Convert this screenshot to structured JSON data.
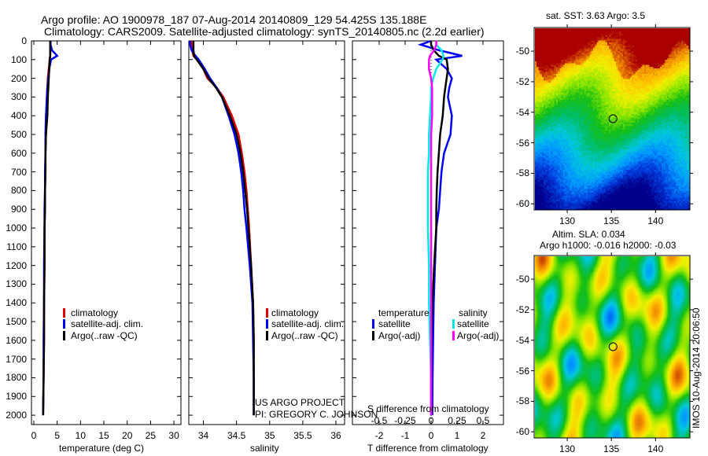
{
  "header": {
    "title_line1": "Argo profile: AO 1900978_187 07-Aug-2014 20140809_129 54.425S 135.188E",
    "title_line2": "Climatology: CARS2009. Satellite-adjusted climatology: synTS_20140805.nc (2.2d earlier)"
  },
  "colors": {
    "climatology": "#e00000",
    "satellite": "#0000ff",
    "argo": "#000000",
    "sal_satellite": "#00e8e8",
    "sal_argo": "#ff00ff"
  },
  "legend_profiles": {
    "climatology": "climatology",
    "satellite": "satellite-adj. clim.",
    "argo": "Argo(..raw -QC)"
  },
  "legend_diff": {
    "temperature": "temperature",
    "salinity": "salinity",
    "t_satellite": "satellite",
    "t_argo": "Argo(-adj)",
    "s_satellite": "satellite",
    "s_argo": "Argo(-adj)"
  },
  "credits": {
    "line1": "US ARGO PROJECT",
    "line2": "PI: GREGORY C. JOHNSON"
  },
  "timestamp": "IMOS 10-Aug-2014 20:06:50",
  "chart_data": [
    {
      "type": "line",
      "name": "temperature-profile",
      "xlabel": "temperature (deg C)",
      "ylabel": "",
      "xlim": [
        -0.5,
        31.5
      ],
      "ylim": [
        2050,
        0
      ],
      "xticks": [
        0,
        5,
        10,
        15,
        20,
        25,
        30
      ],
      "yticks": [
        0,
        100,
        200,
        300,
        400,
        500,
        600,
        700,
        800,
        900,
        1000,
        1100,
        1200,
        1300,
        1400,
        1500,
        1600,
        1700,
        1800,
        1900,
        2000
      ],
      "depth": [
        0,
        20,
        50,
        80,
        100,
        150,
        200,
        250,
        300,
        400,
        500,
        600,
        700,
        800,
        900,
        1000,
        1200,
        1400,
        1600,
        1800,
        2000
      ],
      "series": [
        {
          "name": "climatology",
          "color": "#e00000",
          "values": [
            3.6,
            3.6,
            3.6,
            3.5,
            3.4,
            3.2,
            3.0,
            2.9,
            2.8,
            2.7,
            2.6,
            2.5,
            2.5,
            2.4,
            2.4,
            2.3,
            2.3,
            2.2,
            2.2,
            2.1,
            2.0
          ]
        },
        {
          "name": "satellite-adj. clim.",
          "color": "#0000ff",
          "values": [
            3.6,
            3.6,
            3.9,
            5.0,
            3.7,
            3.3,
            3.1,
            2.9,
            2.8,
            2.6,
            2.5,
            2.5,
            2.4,
            2.4,
            2.3,
            2.3,
            2.2,
            2.2,
            2.1,
            2.1,
            2.0
          ]
        },
        {
          "name": "Argo(..raw -QC)",
          "color": "#000000",
          "values": [
            3.5,
            3.5,
            3.5,
            3.5,
            3.4,
            3.3,
            3.2,
            3.1,
            3.0,
            2.9,
            2.6,
            2.5,
            2.5,
            2.4,
            2.4,
            2.3,
            2.3,
            2.2,
            2.2,
            2.1,
            2.0
          ]
        }
      ]
    },
    {
      "type": "line",
      "name": "salinity-profile",
      "xlabel": "salinity",
      "ylabel": "",
      "xlim": [
        33.78,
        36.13
      ],
      "ylim": [
        2050,
        0
      ],
      "xticks": [
        34,
        34.5,
        35,
        35.5,
        36
      ],
      "depth": [
        0,
        20,
        50,
        80,
        100,
        150,
        200,
        250,
        300,
        400,
        500,
        600,
        700,
        800,
        900,
        1000,
        1200,
        1400,
        1600,
        1800,
        2000
      ],
      "series": [
        {
          "name": "climatology",
          "color": "#e00000",
          "values": [
            33.82,
            33.82,
            33.83,
            33.85,
            33.9,
            34.0,
            34.06,
            34.2,
            34.3,
            34.43,
            34.53,
            34.58,
            34.62,
            34.65,
            34.67,
            34.69,
            34.72,
            34.75,
            34.76,
            34.76,
            34.76
          ]
        },
        {
          "name": "satellite-adj. clim.",
          "color": "#0000ff",
          "values": [
            33.8,
            33.8,
            33.82,
            33.88,
            33.93,
            34.02,
            34.1,
            34.2,
            34.28,
            34.38,
            34.47,
            34.53,
            34.57,
            34.6,
            34.62,
            34.65,
            34.7,
            34.74,
            34.75,
            34.76,
            34.76
          ]
        },
        {
          "name": "Argo(..raw -QC)",
          "color": "#000000",
          "values": [
            33.85,
            33.85,
            33.85,
            33.86,
            33.9,
            34.0,
            34.08,
            34.19,
            34.28,
            34.4,
            34.5,
            34.56,
            34.6,
            34.63,
            34.66,
            34.68,
            34.72,
            34.75,
            34.76,
            34.76,
            34.76
          ]
        }
      ]
    },
    {
      "type": "line",
      "name": "difference-profile",
      "xlabel": "T difference from climatology",
      "xlabel2": "S difference from climatology",
      "xlim": [
        -3.03,
        2.79
      ],
      "ylim": [
        2050,
        0
      ],
      "xticks": [
        -2,
        -1,
        0,
        1,
        2
      ],
      "xticks2": [
        -0.5,
        -0.25,
        0,
        0.25,
        0.5
      ],
      "depth": [
        0,
        20,
        50,
        80,
        100,
        150,
        200,
        250,
        300,
        400,
        500,
        600,
        700,
        800,
        900,
        1000,
        1200,
        1400,
        1600,
        1800,
        2000
      ],
      "series": [
        {
          "name": "T satellite",
          "var": "T",
          "color": "#0000ff",
          "values": [
            0,
            -0.4,
            0.3,
            1.2,
            0.2,
            0.6,
            0.8,
            0.7,
            0.65,
            0.8,
            0.75,
            0.5,
            0.4,
            0.35,
            0.3,
            0.2,
            0.15,
            0.1,
            0.08,
            0.06,
            0.05
          ]
        },
        {
          "name": "T Argo(-adj)",
          "var": "T",
          "color": "#000000",
          "values": [
            0,
            0,
            0.1,
            0.3,
            0.6,
            0.65,
            0.6,
            0.55,
            0.5,
            0.45,
            0.35,
            0.3,
            0.25,
            0.22,
            0.2,
            0.2,
            0.12,
            0.05,
            0.02,
            0.0,
            0.0
          ]
        },
        {
          "name": "S satellite",
          "var": "S",
          "color": "#00e8e8",
          "values": [
            0.05,
            0.05,
            0.1,
            0.12,
            0.11,
            0.05,
            0.02,
            0.0,
            0.0,
            -0.01,
            -0.02,
            -0.02,
            -0.03,
            -0.03,
            -0.03,
            -0.03,
            -0.02,
            -0.02,
            -0.01,
            0.0,
            0.0
          ]
        },
        {
          "name": "S Argo(-adj)",
          "var": "S",
          "color": "#ff00ff",
          "values": [
            0.05,
            0.05,
            0.03,
            -0.01,
            -0.02,
            -0.02,
            0.0,
            0.01,
            0.01,
            0.01,
            0.0,
            0.0,
            0.0,
            0.0,
            0.0,
            0.0,
            0.0,
            0.0,
            0.0,
            0.0,
            0.0
          ]
        }
      ]
    },
    {
      "type": "heatmap",
      "name": "sst-map",
      "title": "sat. SST: 3.63 Argo: 3.5",
      "xlim": [
        126.25,
        143.9
      ],
      "ylim": [
        -60.4,
        -48.45
      ],
      "xticks": [
        130,
        135,
        140
      ],
      "yticks": [
        -50,
        -52,
        -54,
        -56,
        -58,
        -60
      ],
      "marker": {
        "lon": 135.188,
        "lat": -54.425
      }
    },
    {
      "type": "heatmap",
      "name": "sla-map",
      "title": "Altim. SLA: 0.034",
      "subtitle": "Argo h1000: -0.016 h2000: -0.03",
      "xlim": [
        126.25,
        143.9
      ],
      "ylim": [
        -60.4,
        -48.45
      ],
      "xticks": [
        130,
        135,
        140
      ],
      "yticks": [
        -50,
        -52,
        -54,
        -56,
        -58,
        -60
      ],
      "marker": {
        "lon": 135.188,
        "lat": -54.425
      }
    }
  ]
}
